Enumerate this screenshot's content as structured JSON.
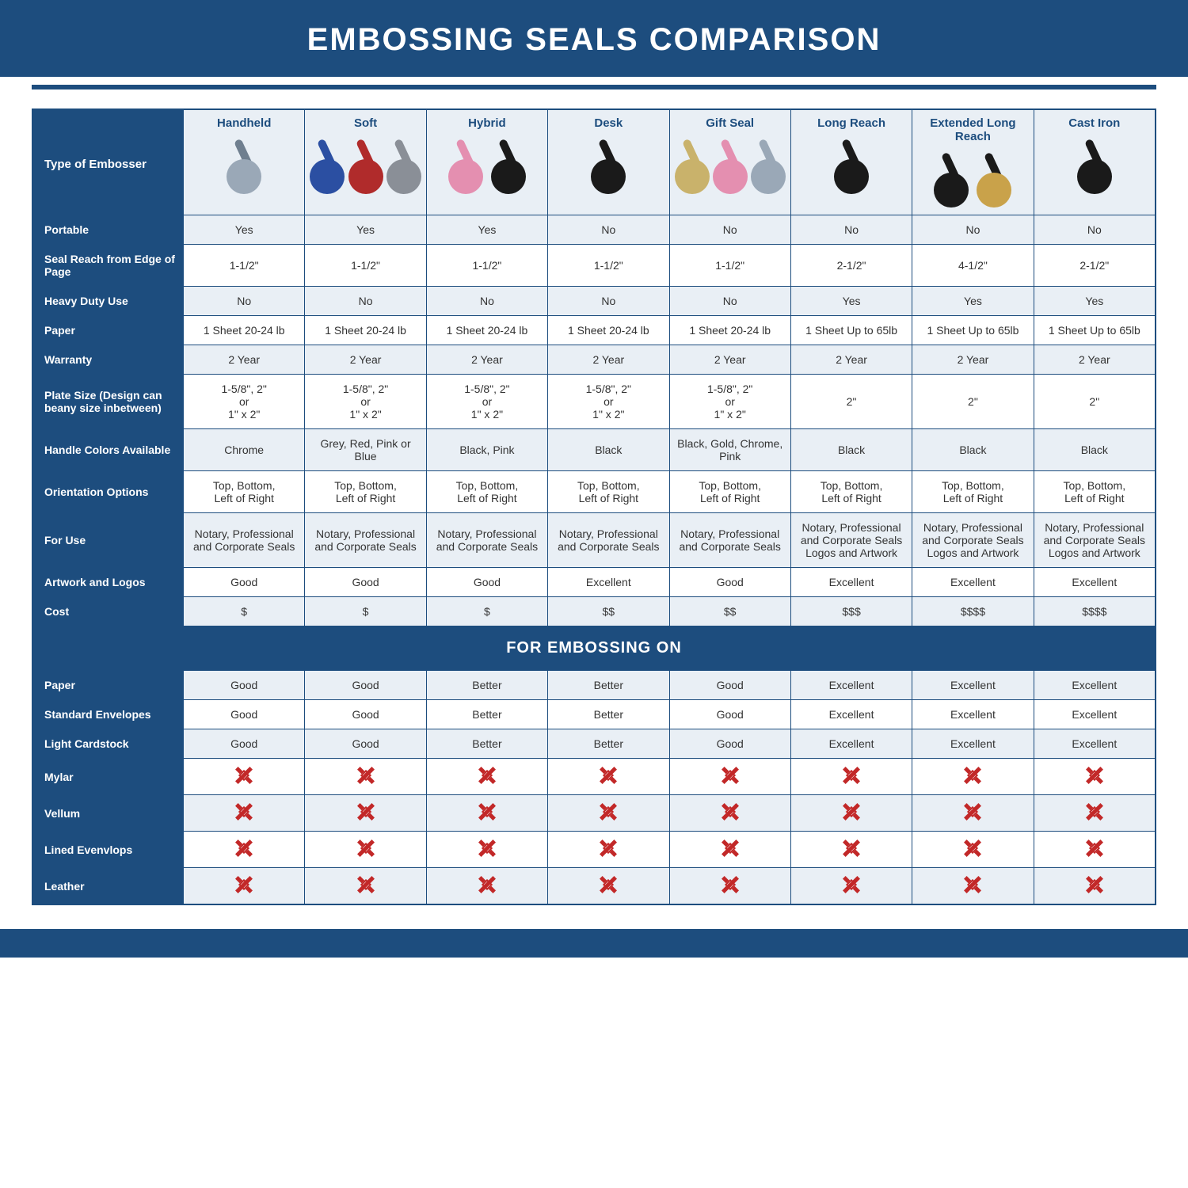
{
  "title": "EMBOSSING SEALS COMPARISON",
  "section_label": "FOR EMBOSSING ON",
  "corner_label": "Type of Embosser",
  "colors": {
    "brand": "#1d4d7e",
    "header_bg": "#e9eff5",
    "alt_row_bg": "#e9eff5",
    "white": "#ffffff",
    "text": "#333333",
    "x_red": "#c22828"
  },
  "fonts": {
    "title_pt": 40,
    "header_pt": 15,
    "cell_pt": 14,
    "section_pt": 20
  },
  "columns": [
    {
      "id": "handheld",
      "label": "Handheld",
      "icons": [
        {
          "c": "#9aa8b7",
          "arm": "#6f7f8f"
        }
      ]
    },
    {
      "id": "soft",
      "label": "Soft",
      "icons": [
        {
          "c": "#2b4fa2",
          "arm": "#2b4fa2"
        },
        {
          "c": "#b02b2b",
          "arm": "#b02b2b"
        },
        {
          "c": "#8a8f97",
          "arm": "#8a8f97"
        }
      ]
    },
    {
      "id": "hybrid",
      "label": "Hybrid",
      "icons": [
        {
          "c": "#e48fb0",
          "arm": "#e48fb0"
        },
        {
          "c": "#1a1a1a",
          "arm": "#1a1a1a"
        }
      ]
    },
    {
      "id": "desk",
      "label": "Desk",
      "icons": [
        {
          "c": "#1a1a1a",
          "arm": "#1a1a1a"
        }
      ]
    },
    {
      "id": "giftseal",
      "label": "Gift Seal",
      "icons": [
        {
          "c": "#c9b26b",
          "arm": "#c9b26b"
        },
        {
          "c": "#e48fb0",
          "arm": "#e48fb0"
        },
        {
          "c": "#9aa8b7",
          "arm": "#9aa8b7"
        }
      ]
    },
    {
      "id": "longreach",
      "label": "Long Reach",
      "icons": [
        {
          "c": "#1a1a1a",
          "arm": "#1a1a1a"
        }
      ]
    },
    {
      "id": "extlong",
      "label": "Extended Long Reach",
      "icons": [
        {
          "c": "#1a1a1a",
          "arm": "#1a1a1a"
        },
        {
          "c": "#c9a24a",
          "arm": "#1a1a1a"
        }
      ]
    },
    {
      "id": "castiron",
      "label": "Cast Iron",
      "icons": [
        {
          "c": "#1a1a1a",
          "arm": "#1a1a1a"
        }
      ]
    }
  ],
  "rows_top": [
    {
      "label": "Portable",
      "alt": true,
      "cells": [
        "Yes",
        "Yes",
        "Yes",
        "No",
        "No",
        "No",
        "No",
        "No"
      ]
    },
    {
      "label": "Seal Reach from Edge of Page",
      "alt": false,
      "cells": [
        "1-1/2\"",
        "1-1/2\"",
        "1-1/2\"",
        "1-1/2\"",
        "1-1/2\"",
        "2-1/2\"",
        "4-1/2\"",
        "2-1/2\""
      ]
    },
    {
      "label": "Heavy Duty Use",
      "alt": true,
      "cells": [
        "No",
        "No",
        "No",
        "No",
        "No",
        "Yes",
        "Yes",
        "Yes"
      ]
    },
    {
      "label": "Paper",
      "alt": false,
      "cells": [
        "1 Sheet 20-24 lb",
        "1 Sheet 20-24 lb",
        "1 Sheet 20-24 lb",
        "1 Sheet 20-24 lb",
        "1 Sheet 20-24 lb",
        "1 Sheet Up to 65lb",
        "1 Sheet Up to 65lb",
        "1 Sheet Up to 65lb"
      ]
    },
    {
      "label": "Warranty",
      "alt": true,
      "cells": [
        "2 Year",
        "2 Year",
        "2 Year",
        "2 Year",
        "2 Year",
        "2 Year",
        "2 Year",
        "2 Year"
      ]
    },
    {
      "label": "Plate Size (Design can beany size inbetween)",
      "alt": false,
      "cells": [
        "1-5/8\", 2\"\nor\n1\" x 2\"",
        "1-5/8\", 2\"\nor\n1\" x 2\"",
        "1-5/8\", 2\"\nor\n1\" x 2\"",
        "1-5/8\", 2\"\nor\n1\" x 2\"",
        "1-5/8\", 2\"\nor\n1\" x 2\"",
        "2\"",
        "2\"",
        "2\""
      ]
    },
    {
      "label": "Handle Colors Available",
      "alt": true,
      "cells": [
        "Chrome",
        "Grey, Red, Pink or Blue",
        "Black, Pink",
        "Black",
        "Black, Gold, Chrome, Pink",
        "Black",
        "Black",
        "Black"
      ]
    },
    {
      "label": "Orientation Options",
      "alt": false,
      "cells": [
        "Top, Bottom,\nLeft of Right",
        "Top, Bottom,\nLeft of Right",
        "Top, Bottom,\nLeft of Right",
        "Top, Bottom,\nLeft of Right",
        "Top, Bottom,\nLeft of Right",
        "Top, Bottom,\nLeft of Right",
        "Top, Bottom,\nLeft of Right",
        "Top, Bottom,\nLeft of Right"
      ]
    },
    {
      "label": "For Use",
      "alt": true,
      "cells": [
        "Notary, Professional and Corporate Seals",
        "Notary, Professional and Corporate Seals",
        "Notary, Professional and Corporate Seals",
        "Notary, Professional and Corporate Seals",
        "Notary, Professional and Corporate Seals",
        "Notary, Professional and Corporate Seals Logos and Artwork",
        "Notary, Professional and Corporate Seals Logos and Artwork",
        "Notary, Professional and Corporate Seals Logos and Artwork"
      ]
    },
    {
      "label": "Artwork and Logos",
      "alt": false,
      "cells": [
        "Good",
        "Good",
        "Good",
        "Excellent",
        "Good",
        "Excellent",
        "Excellent",
        "Excellent"
      ]
    },
    {
      "label": "Cost",
      "alt": true,
      "cells": [
        "$",
        "$",
        "$",
        "$$",
        "$$",
        "$$$",
        "$$$$",
        "$$$$"
      ]
    }
  ],
  "rows_bottom": [
    {
      "label": "Paper",
      "alt": true,
      "type": "text",
      "cells": [
        "Good",
        "Good",
        "Better",
        "Better",
        "Good",
        "Excellent",
        "Excellent",
        "Excellent"
      ]
    },
    {
      "label": "Standard Envelopes",
      "alt": false,
      "type": "text",
      "cells": [
        "Good",
        "Good",
        "Better",
        "Better",
        "Good",
        "Excellent",
        "Excellent",
        "Excellent"
      ]
    },
    {
      "label": "Light Cardstock",
      "alt": true,
      "type": "text",
      "cells": [
        "Good",
        "Good",
        "Better",
        "Better",
        "Good",
        "Excellent",
        "Excellent",
        "Excellent"
      ]
    },
    {
      "label": "Mylar",
      "alt": false,
      "type": "x",
      "cells": [
        "x",
        "x",
        "x",
        "x",
        "x",
        "x",
        "x",
        "x"
      ]
    },
    {
      "label": "Vellum",
      "alt": true,
      "type": "x",
      "cells": [
        "x",
        "x",
        "x",
        "x",
        "x",
        "x",
        "x",
        "x"
      ]
    },
    {
      "label": "Lined Evenvlops",
      "alt": false,
      "type": "x",
      "cells": [
        "x",
        "x",
        "x",
        "x",
        "x",
        "x",
        "x",
        "x"
      ]
    },
    {
      "label": "Leather",
      "alt": true,
      "type": "x",
      "cells": [
        "x",
        "x",
        "x",
        "x",
        "x",
        "x",
        "x",
        "x"
      ]
    }
  ]
}
